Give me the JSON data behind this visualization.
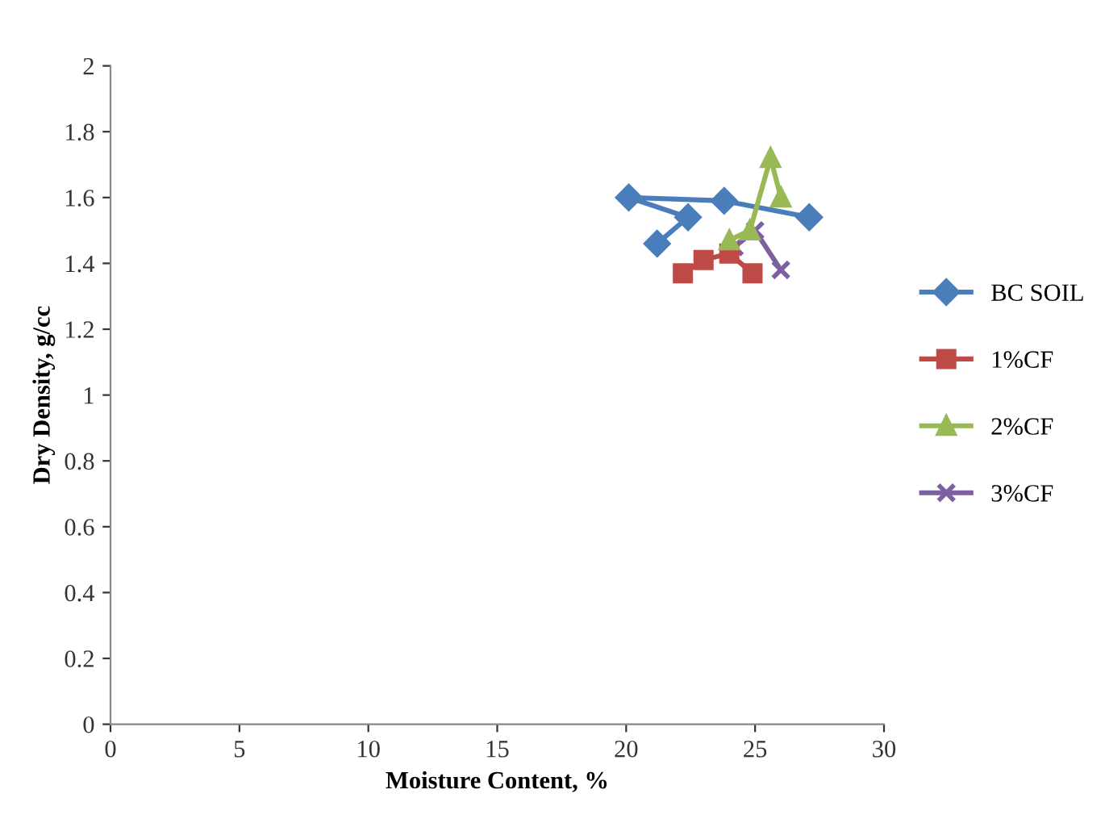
{
  "chart_data": {
    "type": "line",
    "xlabel": "Moisture Content, %",
    "ylabel": "Dry Density, g/cc",
    "xlim": [
      0,
      30
    ],
    "xticks": [
      0,
      5,
      10,
      15,
      20,
      25,
      30
    ],
    "ylim": [
      0,
      2
    ],
    "yticks": [
      0,
      0.2,
      0.4,
      0.6,
      0.8,
      1,
      1.2,
      1.4,
      1.6,
      1.8,
      2
    ],
    "grid": false,
    "legend": "right",
    "series": [
      {
        "name": "BC SOIL",
        "color": "#4a7ebb",
        "marker": "diamond",
        "x": [
          21.2,
          22.4,
          20.1,
          23.8,
          27.1
        ],
        "values": [
          1.46,
          1.54,
          1.6,
          1.59,
          1.54
        ]
      },
      {
        "name": "1%CF",
        "color": "#be4b48",
        "marker": "square",
        "x": [
          22.2,
          23.0,
          24.0,
          24.9
        ],
        "values": [
          1.37,
          1.41,
          1.43,
          1.37
        ]
      },
      {
        "name": "2%CF",
        "color": "#98b954",
        "marker": "triangle",
        "x": [
          24.0,
          24.8,
          25.6,
          26.0
        ],
        "values": [
          1.47,
          1.5,
          1.72,
          1.6
        ]
      },
      {
        "name": "3%CF",
        "color": "#7d60a0",
        "marker": "cross",
        "x": [
          24.2,
          25.0,
          26.0
        ],
        "values": [
          1.45,
          1.5,
          1.38
        ]
      }
    ]
  }
}
